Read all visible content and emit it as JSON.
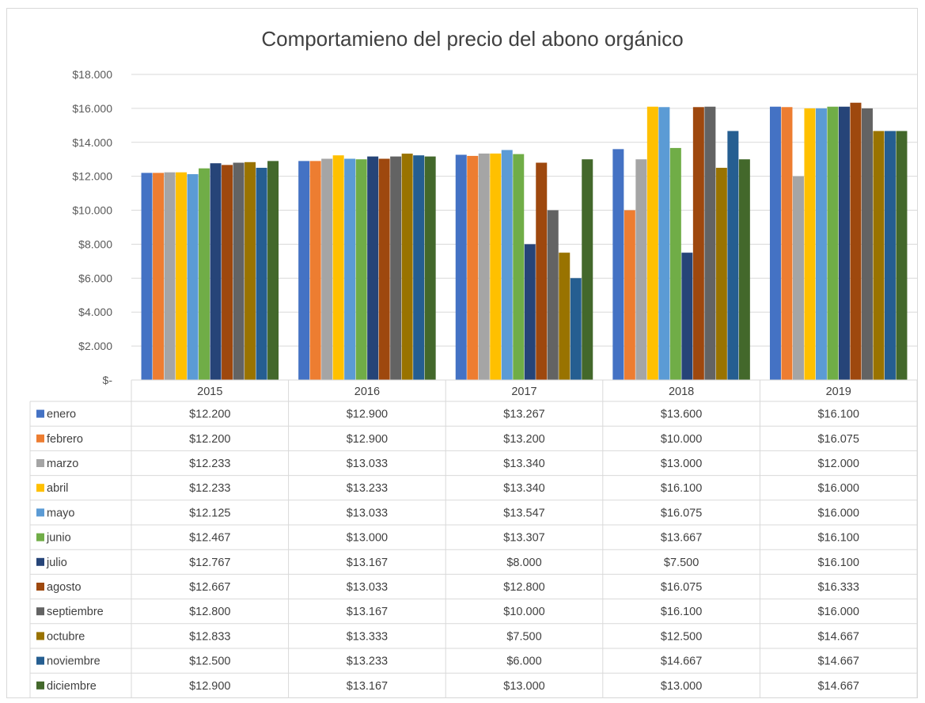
{
  "chart_data": {
    "type": "bar",
    "title": "Comportamieno del precio del abono orgánico",
    "categories": [
      "2015",
      "2016",
      "2017",
      "2018",
      "2019"
    ],
    "ylim": [
      0,
      18000
    ],
    "yticks": [
      0,
      2000,
      4000,
      6000,
      8000,
      10000,
      12000,
      14000,
      16000,
      18000
    ],
    "ytick_labels": [
      "$-",
      "$2.000",
      "$4.000",
      "$6.000",
      "$8.000",
      "$10.000",
      "$12.000",
      "$14.000",
      "$16.000",
      "$18.000"
    ],
    "grid": true,
    "legend": "data-table",
    "series": [
      {
        "name": "enero",
        "color": "#4472C4",
        "values": [
          12200,
          12900,
          13267,
          13600,
          16100
        ],
        "labels": [
          "$12.200",
          "$12.900",
          "$13.267",
          "$13.600",
          "$16.100"
        ]
      },
      {
        "name": "febrero",
        "color": "#ED7D31",
        "values": [
          12200,
          12900,
          13200,
          10000,
          16075
        ],
        "labels": [
          "$12.200",
          "$12.900",
          "$13.200",
          "$10.000",
          "$16.075"
        ]
      },
      {
        "name": "marzo",
        "color": "#A5A5A5",
        "values": [
          12233,
          13033,
          13340,
          13000,
          12000
        ],
        "labels": [
          "$12.233",
          "$13.033",
          "$13.340",
          "$13.000",
          "$12.000"
        ]
      },
      {
        "name": "abril",
        "color": "#FFC000",
        "values": [
          12233,
          13233,
          13340,
          16100,
          16000
        ],
        "labels": [
          "$12.233",
          "$13.233",
          "$13.340",
          "$16.100",
          "$16.000"
        ]
      },
      {
        "name": "mayo",
        "color": "#5B9BD5",
        "values": [
          12125,
          13033,
          13547,
          16075,
          16000
        ],
        "labels": [
          "$12.125",
          "$13.033",
          "$13.547",
          "$16.075",
          "$16.000"
        ]
      },
      {
        "name": "junio",
        "color": "#70AD47",
        "values": [
          12467,
          13000,
          13307,
          13667,
          16100
        ],
        "labels": [
          "$12.467",
          "$13.000",
          "$13.307",
          "$13.667",
          "$16.100"
        ]
      },
      {
        "name": "julio",
        "color": "#264478",
        "values": [
          12767,
          13167,
          8000,
          7500,
          16100
        ],
        "labels": [
          "$12.767",
          "$13.167",
          "$8.000",
          "$7.500",
          "$16.100"
        ]
      },
      {
        "name": "agosto",
        "color": "#9E480E",
        "values": [
          12667,
          13033,
          12800,
          16075,
          16333
        ],
        "labels": [
          "$12.667",
          "$13.033",
          "$12.800",
          "$16.075",
          "$16.333"
        ]
      },
      {
        "name": "septiembre",
        "color": "#636363",
        "values": [
          12800,
          13167,
          10000,
          16100,
          16000
        ],
        "labels": [
          "$12.800",
          "$13.167",
          "$10.000",
          "$16.100",
          "$16.000"
        ]
      },
      {
        "name": "octubre",
        "color": "#997300",
        "values": [
          12833,
          13333,
          7500,
          12500,
          14667
        ],
        "labels": [
          "$12.833",
          "$13.333",
          "$7.500",
          "$12.500",
          "$14.667"
        ]
      },
      {
        "name": "noviembre",
        "color": "#255E91",
        "values": [
          12500,
          13233,
          6000,
          14667,
          14667
        ],
        "labels": [
          "$12.500",
          "$13.233",
          "$6.000",
          "$14.667",
          "$14.667"
        ]
      },
      {
        "name": "diciembre",
        "color": "#43682B",
        "values": [
          12900,
          13167,
          13000,
          13000,
          14667
        ],
        "labels": [
          "$12.900",
          "$13.167",
          "$13.000",
          "$13.000",
          "$14.667"
        ]
      }
    ]
  }
}
